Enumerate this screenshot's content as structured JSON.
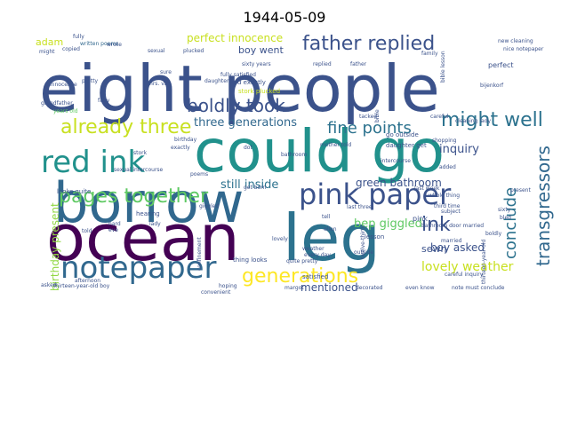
{
  "title": "1944-05-09",
  "colors": {
    "background": "#ffffff",
    "title": "#000000",
    "palette": [
      "#440154",
      "#3b528b",
      "#21918c",
      "#5ec962",
      "#fde725",
      "#2c728e",
      "#31688e",
      "#35b779",
      "#90d743",
      "#c8e020"
    ]
  },
  "words": [
    {
      "text": "eight people",
      "weight": 1.0
    },
    {
      "text": "ocean",
      "weight": 0.92
    },
    {
      "text": "leg",
      "weight": 0.92
    },
    {
      "text": "could go",
      "weight": 0.9
    },
    {
      "text": "borrow",
      "weight": 0.8
    },
    {
      "text": "red ink",
      "weight": 0.55
    },
    {
      "text": "notepaper",
      "weight": 0.52
    },
    {
      "text": "pink paper",
      "weight": 0.5
    },
    {
      "text": "pages together",
      "weight": 0.4
    },
    {
      "text": "father replied",
      "weight": 0.38
    },
    {
      "text": "already three",
      "weight": 0.36
    },
    {
      "text": "might well",
      "weight": 0.36
    },
    {
      "text": "generations",
      "weight": 0.34
    },
    {
      "text": "boldly took",
      "weight": 0.34
    },
    {
      "text": "transgressors",
      "weight": 0.32
    },
    {
      "text": "conclude",
      "weight": 0.32
    },
    {
      "text": "ink",
      "weight": 0.32
    },
    {
      "text": "fine points",
      "weight": 0.28
    },
    {
      "text": "three generations",
      "weight": 0.25
    },
    {
      "text": "perfect innocence",
      "weight": 0.22
    },
    {
      "text": "still inside",
      "weight": 0.22
    },
    {
      "text": "lovely weather",
      "weight": 0.21
    },
    {
      "text": "green bathroom",
      "weight": 0.2
    },
    {
      "text": "bep giggled",
      "weight": 0.2
    },
    {
      "text": "boy asked",
      "weight": 0.2
    },
    {
      "text": "mentioned",
      "weight": 0.2
    },
    {
      "text": "inquiry",
      "weight": 0.19
    },
    {
      "text": "birthday present",
      "weight": 0.19
    },
    {
      "text": "sewn",
      "weight": 0.18
    },
    {
      "text": "boy went",
      "weight": 0.17
    },
    {
      "text": "adam",
      "weight": 0.17
    },
    {
      "text": "told exactly",
      "weight": 0.13
    },
    {
      "text": "stork plucked",
      "weight": 0.13
    },
    {
      "text": "written poems",
      "weight": 0.12
    },
    {
      "text": "copied",
      "weight": 0.12
    },
    {
      "text": "grandfather",
      "weight": 0.12
    },
    {
      "text": "thirteen-year-old boy",
      "weight": 0.12
    },
    {
      "text": "hearing",
      "weight": 0.12
    },
    {
      "text": "looks quite",
      "weight": 0.12
    },
    {
      "text": "sexual intercourse",
      "weight": 0.12
    },
    {
      "text": "years old",
      "weight": 0.12
    },
    {
      "text": "thing looks",
      "weight": 0.12
    },
    {
      "text": "giggled",
      "weight": 0.12
    },
    {
      "text": "quite pretty",
      "weight": 0.12
    },
    {
      "text": "lesson",
      "weight": 0.12
    },
    {
      "text": "decorated",
      "weight": 0.12
    },
    {
      "text": "even know",
      "weight": 0.12
    },
    {
      "text": "careful inquiry",
      "weight": 0.12
    },
    {
      "text": "note must conclude",
      "weight": 0.12
    },
    {
      "text": "thirteen-year-old",
      "weight": 0.12
    },
    {
      "text": "go outside",
      "weight": 0.12
    },
    {
      "text": "daughter get",
      "weight": 0.12
    },
    {
      "text": "intercourse",
      "weight": 0.12
    },
    {
      "text": "whole thing",
      "weight": 0.12
    },
    {
      "text": "subject",
      "weight": 0.12
    },
    {
      "text": "third time",
      "weight": 0.12
    },
    {
      "text": "last three",
      "weight": 0.12
    },
    {
      "text": "bled",
      "weight": 0.12
    },
    {
      "text": "bijenkorf",
      "weight": 0.12
    },
    {
      "text": "new cleaning",
      "weight": 0.12
    },
    {
      "text": "nice notepaper",
      "weight": 0.12
    },
    {
      "text": "perfect",
      "weight": 0.12
    },
    {
      "text": "bible lesson",
      "weight": 0.12
    },
    {
      "text": "sixty",
      "weight": 0.12
    },
    {
      "text": "satisfied",
      "weight": 0.12
    },
    {
      "text": "convenient",
      "weight": 0.12
    },
    {
      "text": "hoping",
      "weight": 0.12
    },
    {
      "text": "eve",
      "weight": 0.12
    },
    {
      "text": "fairy",
      "weight": 0.12
    },
    {
      "text": "daughter",
      "weight": 0.12
    },
    {
      "text": "fully satisfied",
      "weight": 0.12
    },
    {
      "text": "sixty years",
      "weight": 0.12
    },
    {
      "text": "get born",
      "weight": 0.12
    },
    {
      "text": "sexual",
      "weight": 0.1
    },
    {
      "text": "innocence",
      "weight": 0.1
    },
    {
      "text": "plucked",
      "weight": 0.1
    },
    {
      "text": "poems",
      "weight": 0.1
    },
    {
      "text": "pink",
      "weight": 0.1
    },
    {
      "text": "added",
      "weight": 0.1
    },
    {
      "text": "ellen",
      "weight": 0.1
    },
    {
      "text": "tell",
      "weight": 0.1
    },
    {
      "text": "bathroom door married",
      "weight": 0.1
    },
    {
      "text": "twelve-thirty",
      "weight": 0.1
    },
    {
      "text": "boldly",
      "weight": 0.1
    },
    {
      "text": "fully",
      "weight": 0.08
    },
    {
      "text": "might",
      "weight": 0.08
    },
    {
      "text": "wrote",
      "weight": 0.08
    },
    {
      "text": "bible",
      "weight": 0.08
    },
    {
      "text": "replied",
      "weight": 0.08
    },
    {
      "text": "cleaning lady",
      "weight": 0.08
    },
    {
      "text": "father",
      "weight": 0.08
    },
    {
      "text": "mother told",
      "weight": 0.08
    },
    {
      "text": "tacked",
      "weight": 0.08
    },
    {
      "text": "careful",
      "weight": 0.08
    },
    {
      "text": "outside",
      "weight": 0.08
    },
    {
      "text": "weather",
      "weight": 0.08
    },
    {
      "text": "every day",
      "weight": 0.08
    },
    {
      "text": "confinement",
      "weight": 0.08
    },
    {
      "text": "lovely",
      "weight": 0.08
    },
    {
      "text": "married",
      "weight": 0.08
    },
    {
      "text": "shopping",
      "weight": 0.08
    },
    {
      "text": "present",
      "weight": 0.08
    },
    {
      "text": "birthday",
      "weight": 0.08
    },
    {
      "text": "bathroom",
      "weight": 0.08
    },
    {
      "text": "mrs. van",
      "weight": 0.08
    },
    {
      "text": "last week",
      "weight": 0.08
    },
    {
      "text": "dot",
      "weight": 0.08
    },
    {
      "text": "hard",
      "weight": 0.08
    },
    {
      "text": "pretty",
      "weight": 0.08
    },
    {
      "text": "sure",
      "weight": 0.08
    },
    {
      "text": "asked",
      "weight": 0.08
    },
    {
      "text": "exactly",
      "weight": 0.08
    },
    {
      "text": "stork",
      "weight": 0.08
    },
    {
      "text": "afternoon",
      "weight": 0.08
    },
    {
      "text": "family",
      "weight": 0.08
    },
    {
      "text": "lady",
      "weight": 0.08
    },
    {
      "text": "margot",
      "weight": 0.08
    },
    {
      "text": "told",
      "weight": 0.08
    }
  ]
}
